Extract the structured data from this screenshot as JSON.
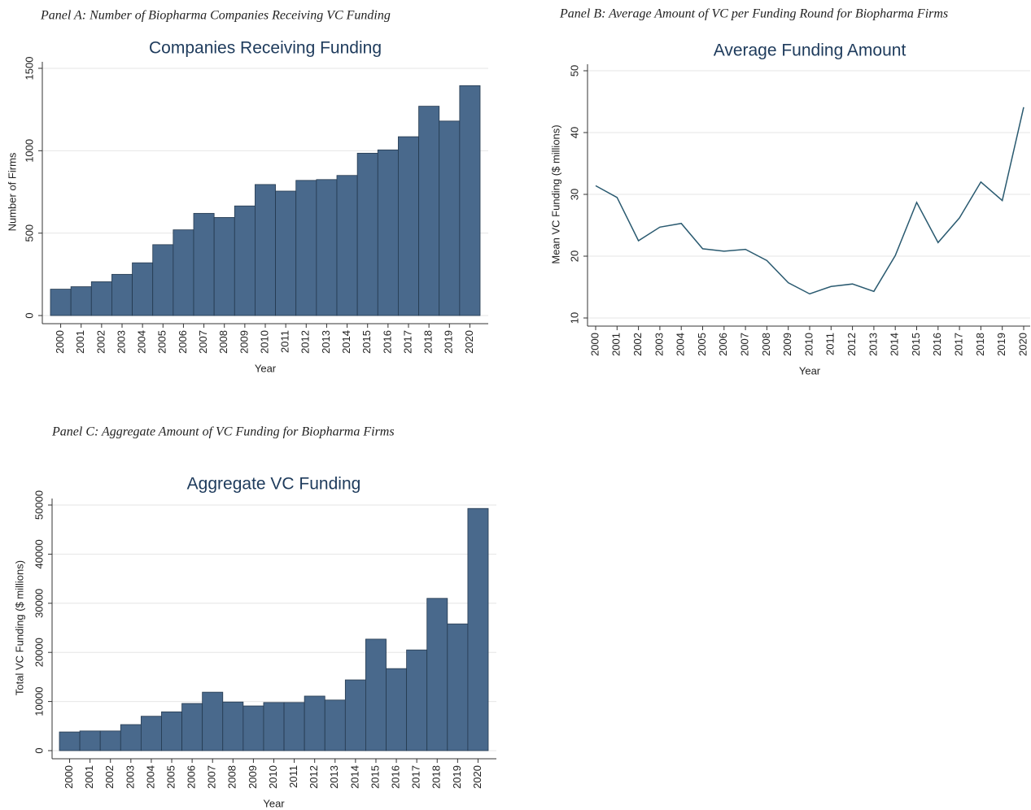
{
  "chart_data": [
    {
      "type": "bar",
      "panel": "Panel A: Number of Biopharma Companies Receiving VC Funding",
      "title": "Companies Receiving Funding",
      "xlabel": "Year",
      "ylabel": "Number of Firms",
      "color": "#49698c",
      "grid": true,
      "categories": [
        "2000",
        "2001",
        "2002",
        "2003",
        "2004",
        "2005",
        "2006",
        "2007",
        "2008",
        "2009",
        "2010",
        "2011",
        "2012",
        "2013",
        "2014",
        "2015",
        "2016",
        "2017",
        "2018",
        "2019",
        "2020"
      ],
      "values": [
        160,
        175,
        205,
        250,
        320,
        430,
        520,
        620,
        595,
        665,
        795,
        755,
        820,
        825,
        850,
        985,
        1005,
        1085,
        1270,
        1180,
        1395
      ],
      "ylim": [
        0,
        1500
      ],
      "yticks": [
        0,
        500,
        1000,
        1500
      ]
    },
    {
      "type": "line",
      "panel": "Panel B: Average Amount of VC per Funding Round for Biopharma Firms",
      "title": "Average Funding Amount",
      "xlabel": "Year",
      "ylabel": "Mean VC Funding ($ millions)",
      "color": "#2a5a70",
      "grid": true,
      "categories": [
        "2000",
        "2001",
        "2002",
        "2003",
        "2004",
        "2005",
        "2006",
        "2007",
        "2008",
        "2009",
        "2010",
        "2011",
        "2012",
        "2013",
        "2014",
        "2015",
        "2016",
        "2017",
        "2018",
        "2019",
        "2020"
      ],
      "values": [
        31.4,
        29.5,
        22.5,
        24.7,
        25.3,
        21.2,
        20.8,
        21.1,
        19.3,
        15.7,
        13.9,
        15.1,
        15.5,
        14.3,
        20.1,
        28.7,
        22.2,
        26.2,
        32.0,
        29.0,
        44.1
      ],
      "ylim": [
        10,
        50
      ],
      "yticks": [
        10,
        20,
        30,
        40,
        50
      ]
    },
    {
      "type": "bar",
      "panel": "Panel C: Aggregate Amount of VC Funding for Biopharma Firms",
      "title": "Aggregate VC Funding",
      "xlabel": "Year",
      "ylabel": "Total VC Funding ($ millions)",
      "color": "#49698c",
      "grid": true,
      "categories": [
        "2000",
        "2001",
        "2002",
        "2003",
        "2004",
        "2005",
        "2006",
        "2007",
        "2008",
        "2009",
        "2010",
        "2011",
        "2012",
        "2013",
        "2014",
        "2015",
        "2016",
        "2017",
        "2018",
        "2019",
        "2020"
      ],
      "values": [
        3800,
        4000,
        4000,
        5300,
        7000,
        7900,
        9600,
        11900,
        9900,
        9100,
        9800,
        9800,
        11100,
        10300,
        14400,
        22700,
        16700,
        20500,
        31000,
        25800,
        49300
      ],
      "ylim": [
        0,
        50000
      ],
      "yticks": [
        0,
        10000,
        20000,
        30000,
        40000,
        50000
      ]
    }
  ]
}
